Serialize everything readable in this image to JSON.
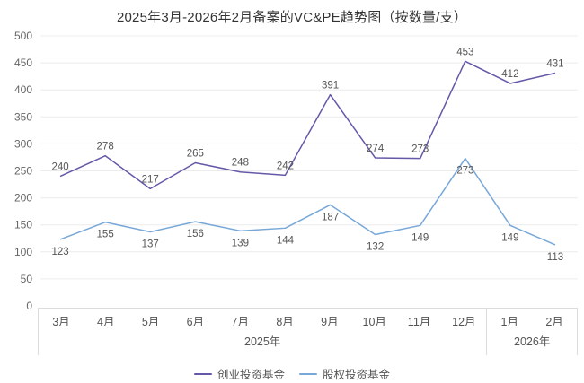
{
  "title": "2025年3月-2026年2月备案的VC&PE趋势图（按数量/支）",
  "chart_data": {
    "type": "line",
    "title": "2025年3月-2026年2月备案的VC&PE趋势图（按数量/支）",
    "xlabel": "",
    "ylabel": "",
    "categories": [
      "3月",
      "4月",
      "5月",
      "6月",
      "7月",
      "8月",
      "9月",
      "10月",
      "11月",
      "12月",
      "1月",
      "2月"
    ],
    "x_groups": [
      {
        "label": "2025年",
        "span": 10
      },
      {
        "label": "2026年",
        "span": 2
      }
    ],
    "series": [
      {
        "name": "创业投资基金",
        "color": "#6458a8",
        "label_position": "above",
        "values": [
          240,
          278,
          217,
          265,
          248,
          242,
          391,
          274,
          273,
          453,
          412,
          431
        ]
      },
      {
        "name": "股权投资基金",
        "color": "#78a8d8",
        "label_position": "below",
        "values": [
          123,
          155,
          137,
          156,
          139,
          144,
          187,
          132,
          149,
          273,
          149,
          113
        ]
      }
    ],
    "ylim": [
      0,
      500
    ],
    "yticks": [
      0,
      50,
      100,
      150,
      200,
      250,
      300,
      350,
      400,
      450,
      500
    ],
    "grid": true,
    "legend_position": "bottom",
    "colors": {
      "grid_line": "#ececec",
      "axis_border": "#dcdcdc",
      "tick_text": "#666666",
      "value_label_text": "#555555"
    }
  }
}
